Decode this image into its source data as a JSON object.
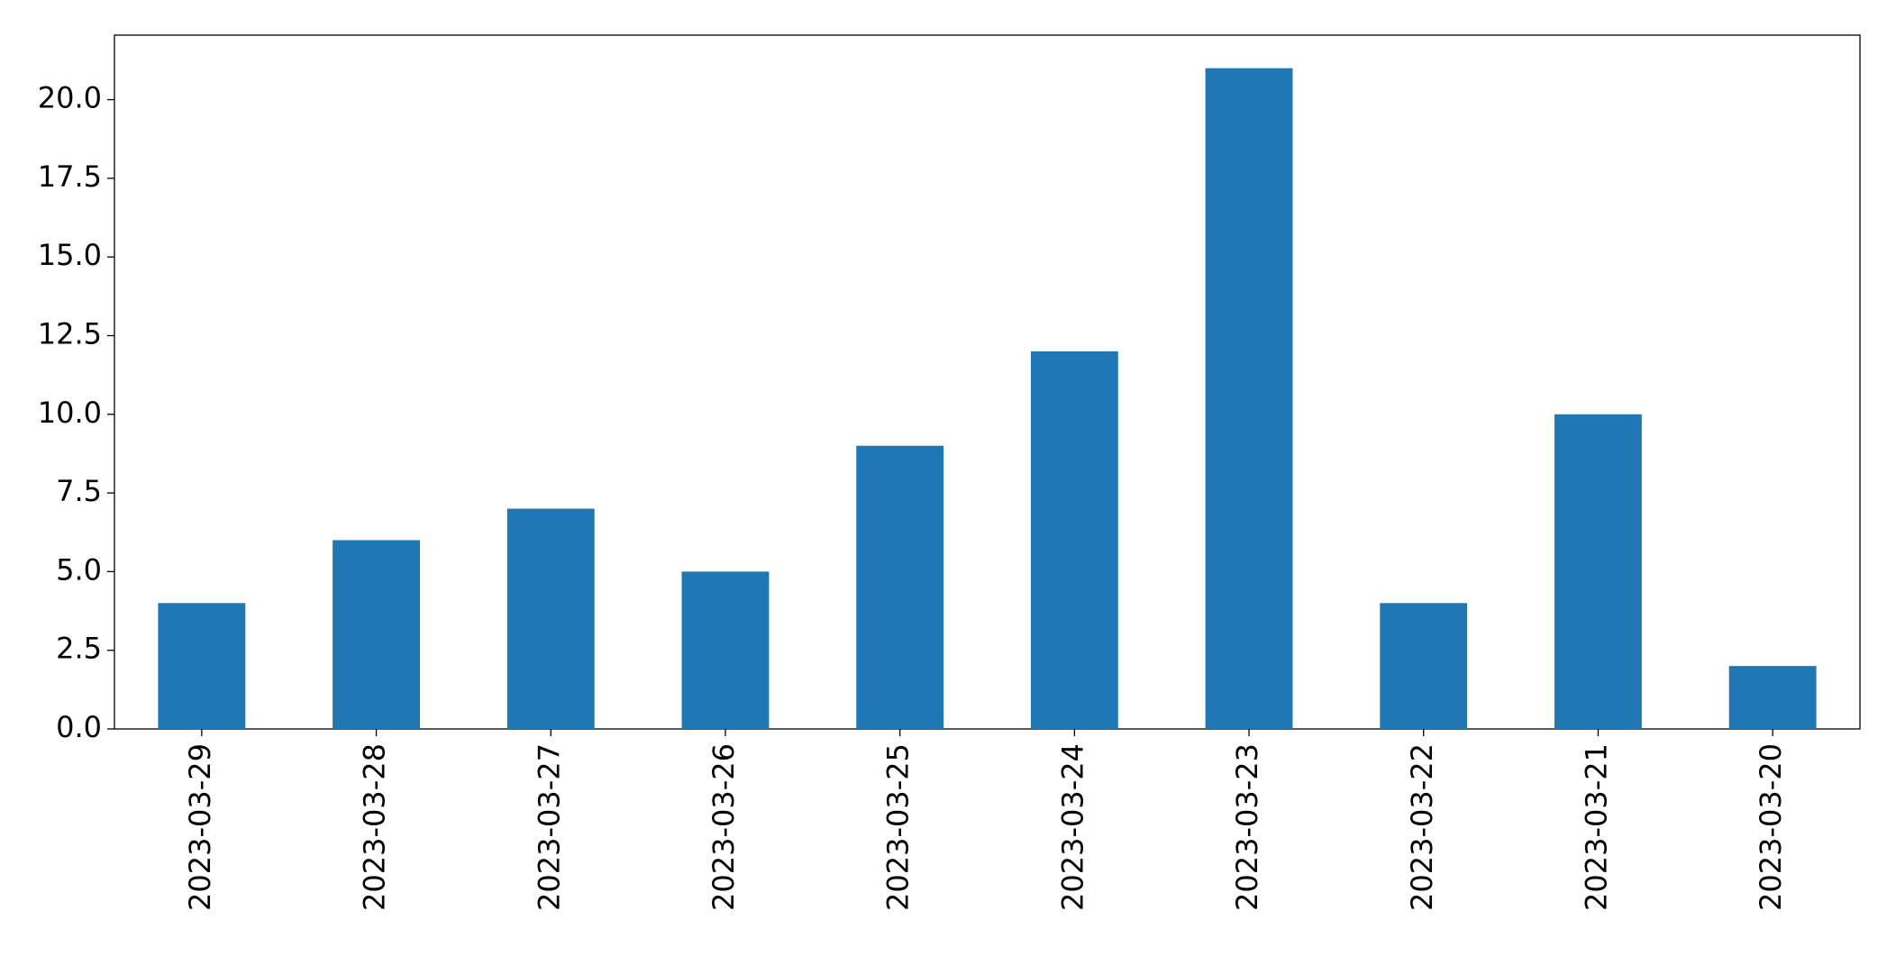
{
  "chart_data": {
    "type": "bar",
    "categories": [
      "2023-03-29",
      "2023-03-28",
      "2023-03-27",
      "2023-03-26",
      "2023-03-25",
      "2023-03-24",
      "2023-03-23",
      "2023-03-22",
      "2023-03-21",
      "2023-03-20"
    ],
    "values": [
      4,
      6,
      7,
      5,
      9,
      12,
      21,
      4,
      10,
      2
    ],
    "color": "#1f77b4",
    "ylim": [
      0,
      22.05
    ],
    "yticks": [
      {
        "value": 0,
        "label": "0.0"
      },
      2.5,
      {
        "value": 5,
        "label": "5.0"
      },
      7.5,
      {
        "value": 10,
        "label": "10.0"
      },
      12.5,
      {
        "value": 15,
        "label": "15.0"
      },
      17.5,
      {
        "value": 20,
        "label": "20.0"
      }
    ],
    "grid": false
  }
}
